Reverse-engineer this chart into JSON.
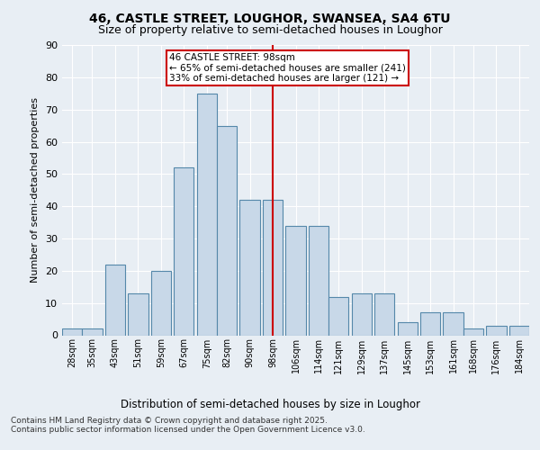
{
  "title": "46, CASTLE STREET, LOUGHOR, SWANSEA, SA4 6TU",
  "subtitle": "Size of property relative to semi-detached houses in Loughor",
  "xlabel": "Distribution of semi-detached houses by size in Loughor",
  "ylabel": "Number of semi-detached properties",
  "bin_centers": [
    28,
    35,
    43,
    51,
    59,
    67,
    75,
    82,
    90,
    98,
    106,
    114,
    121,
    129,
    137,
    145,
    153,
    161,
    168,
    176,
    184
  ],
  "bin_labels": [
    "28sqm",
    "35sqm",
    "43sqm",
    "51sqm",
    "59sqm",
    "67sqm",
    "75sqm",
    "82sqm",
    "90sqm",
    "98sqm",
    "106sqm",
    "114sqm",
    "121sqm",
    "129sqm",
    "137sqm",
    "145sqm",
    "153sqm",
    "161sqm",
    "168sqm",
    "176sqm",
    "184sqm"
  ],
  "bar_heights": [
    2,
    2,
    22,
    13,
    20,
    52,
    75,
    65,
    42,
    42,
    34,
    34,
    12,
    13,
    13,
    4,
    7,
    7,
    2,
    3,
    3
  ],
  "bar_width": 7.0,
  "property_size": 98,
  "pct_smaller": 65,
  "pct_larger": 33,
  "count_smaller": 241,
  "count_larger": 121,
  "bar_color": "#c8d8e8",
  "bar_edge_color": "#5588aa",
  "vline_color": "#cc0000",
  "annotation_box_edge": "#cc0000",
  "background_color": "#e8eef4",
  "plot_bg_color": "#e8eef4",
  "grid_color": "#ffffff",
  "ylim": [
    0,
    90
  ],
  "yticks": [
    0,
    10,
    20,
    30,
    40,
    50,
    60,
    70,
    80,
    90
  ],
  "title_fontsize": 10,
  "subtitle_fontsize": 9,
  "footer": "Contains HM Land Registry data © Crown copyright and database right 2025.\nContains public sector information licensed under the Open Government Licence v3.0."
}
